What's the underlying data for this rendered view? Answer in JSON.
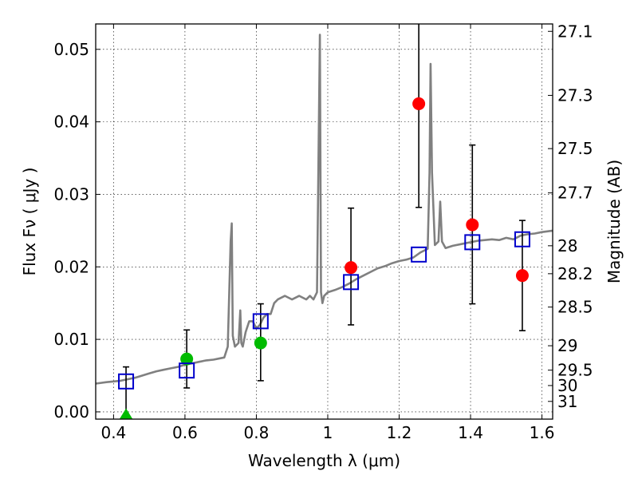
{
  "chart_data": {
    "type": "scatter",
    "xlabel": "Wavelength  λ (μm)",
    "ylabel": "Flux  Fν  ( μJy )",
    "y2label": "Magnitude (AB)",
    "xlim": [
      0.35,
      1.63
    ],
    "ylim": [
      -0.001,
      0.0535
    ],
    "grid": true,
    "x_ticks": [
      0.4,
      0.6,
      0.8,
      1.0,
      1.2,
      1.4,
      1.6
    ],
    "x_tick_labels": [
      "0.4",
      "0.6",
      "0.8",
      "1",
      "1.2",
      "1.4",
      "1.6"
    ],
    "y_ticks": [
      0.0,
      0.01,
      0.02,
      0.03,
      0.04,
      0.05
    ],
    "y_tick_labels": [
      "0.00",
      "0.01",
      "0.02",
      "0.03",
      "0.04",
      "0.05"
    ],
    "mag_ticks": [
      27.1,
      27.3,
      27.5,
      27.7,
      28,
      28.2,
      28.5,
      29,
      29.5,
      30,
      31
    ],
    "mag_tick_labels": [
      "27.1",
      "27.3",
      "27.5",
      "27.7",
      "28",
      "28.2",
      "28.5",
      "29",
      "29.5",
      "30",
      "31"
    ],
    "series": [
      {
        "name": "model-spectrum",
        "kind": "line",
        "color": "#808080",
        "x": [
          0.35,
          0.38,
          0.4,
          0.42,
          0.44,
          0.46,
          0.48,
          0.5,
          0.52,
          0.54,
          0.56,
          0.58,
          0.6,
          0.62,
          0.64,
          0.66,
          0.68,
          0.7,
          0.71,
          0.72,
          0.728,
          0.731,
          0.734,
          0.74,
          0.75,
          0.755,
          0.758,
          0.762,
          0.77,
          0.78,
          0.79,
          0.8,
          0.81,
          0.82,
          0.83,
          0.84,
          0.85,
          0.86,
          0.88,
          0.9,
          0.92,
          0.94,
          0.95,
          0.96,
          0.97,
          0.978,
          0.981,
          0.985,
          0.99,
          1.0,
          1.02,
          1.04,
          1.06,
          1.08,
          1.1,
          1.12,
          1.14,
          1.16,
          1.18,
          1.2,
          1.22,
          1.24,
          1.26,
          1.28,
          1.285,
          1.288,
          1.292,
          1.3,
          1.31,
          1.315,
          1.32,
          1.33,
          1.35,
          1.38,
          1.4,
          1.42,
          1.44,
          1.46,
          1.48,
          1.5,
          1.52,
          1.54,
          1.56,
          1.58,
          1.6,
          1.63
        ],
        "y": [
          0.0039,
          0.0041,
          0.0042,
          0.0043,
          0.0045,
          0.0047,
          0.005,
          0.0053,
          0.0056,
          0.0058,
          0.006,
          0.0062,
          0.0065,
          0.0067,
          0.0069,
          0.0071,
          0.0072,
          0.0074,
          0.0075,
          0.009,
          0.0235,
          0.026,
          0.0105,
          0.009,
          0.0095,
          0.014,
          0.0095,
          0.009,
          0.011,
          0.0125,
          0.0125,
          0.0115,
          0.012,
          0.013,
          0.0135,
          0.0135,
          0.015,
          0.0155,
          0.016,
          0.0155,
          0.016,
          0.0155,
          0.016,
          0.0155,
          0.0165,
          0.052,
          0.0165,
          0.015,
          0.016,
          0.0165,
          0.0168,
          0.0172,
          0.0177,
          0.0183,
          0.0188,
          0.0193,
          0.0198,
          0.0201,
          0.0205,
          0.0208,
          0.021,
          0.0213,
          0.022,
          0.0225,
          0.033,
          0.048,
          0.033,
          0.023,
          0.0235,
          0.029,
          0.0235,
          0.0226,
          0.0229,
          0.0232,
          0.0234,
          0.0236,
          0.0237,
          0.0238,
          0.0237,
          0.024,
          0.0238,
          0.0243,
          0.0245,
          0.0246,
          0.0248,
          0.025
        ]
      },
      {
        "name": "observed-points",
        "kind": "scatter",
        "color": "#ff0000",
        "x": [
          1.065,
          1.255,
          1.405,
          1.545
        ],
        "y": [
          0.0199,
          0.0425,
          0.0258,
          0.0188
        ],
        "y_err_low": [
          0.012,
          0.0282,
          0.0149,
          0.0112
        ],
        "y_err_high": [
          0.0281,
          0.054,
          0.0368,
          0.0264
        ]
      },
      {
        "name": "observed-points-green",
        "kind": "scatter",
        "color": "#00bb00",
        "x": [
          0.605,
          0.812
        ],
        "y": [
          0.0073,
          0.0095
        ],
        "y_err_low": [
          0.0033,
          0.0043
        ],
        "y_err_high": [
          0.0113,
          0.0149
        ]
      },
      {
        "name": "upper-limit",
        "kind": "triangle",
        "color": "#00bb00",
        "x": [
          0.435
        ],
        "y": [
          -0.0005
        ],
        "y_err_low": [
          -0.001
        ],
        "y_err_high": [
          0.0062
        ]
      },
      {
        "name": "model-photometry",
        "kind": "square",
        "color": "#0000cc",
        "x": [
          0.435,
          0.605,
          0.812,
          1.065,
          1.255,
          1.405,
          1.545
        ],
        "y": [
          0.0042,
          0.0057,
          0.0125,
          0.0179,
          0.0217,
          0.0234,
          0.0238
        ]
      }
    ]
  }
}
